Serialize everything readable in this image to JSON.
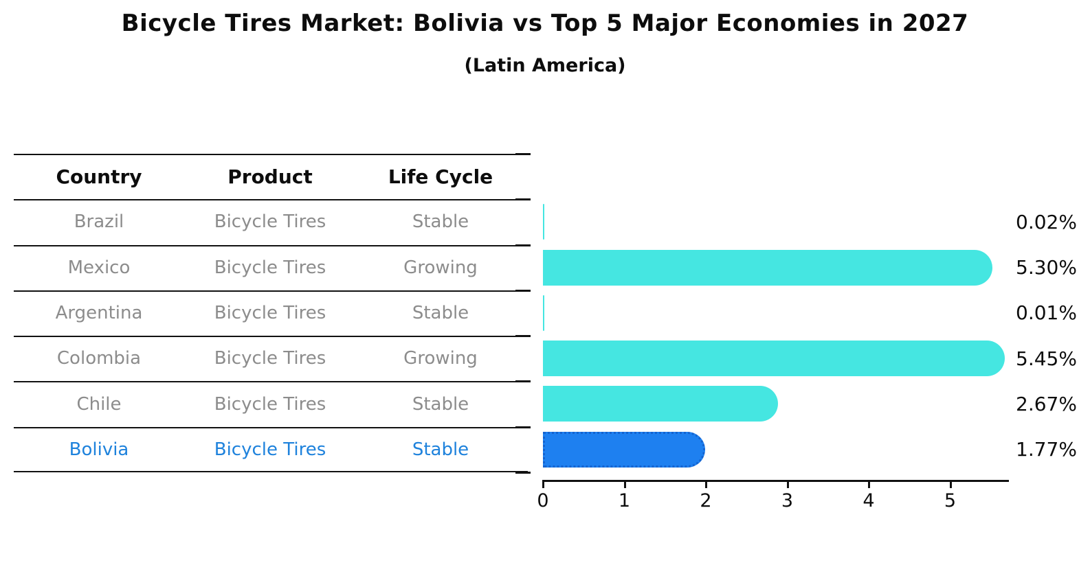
{
  "title": "Bicycle Tires Market: Bolivia vs Top 5 Major Economies in 2027",
  "subtitle": "(Latin America)",
  "table": {
    "headers": [
      "Country",
      "Product",
      "Life Cycle"
    ],
    "rows": [
      {
        "country": "Brazil",
        "product": "Bicycle Tires",
        "life_cycle": "Stable",
        "highlighted": false
      },
      {
        "country": "Mexico",
        "product": "Bicycle Tires",
        "life_cycle": "Growing",
        "highlighted": false
      },
      {
        "country": "Argentina",
        "product": "Bicycle Tires",
        "life_cycle": "Stable",
        "highlighted": false
      },
      {
        "country": "Colombia",
        "product": "Bicycle Tires",
        "life_cycle": "Growing",
        "highlighted": false
      },
      {
        "country": "Chile",
        "product": "Bicycle Tires",
        "life_cycle": "Stable",
        "highlighted": false
      },
      {
        "country": "Bolivia",
        "product": "Bicycle Tires",
        "life_cycle": "Stable",
        "highlighted": true
      }
    ]
  },
  "chart_data": {
    "type": "bar",
    "orientation": "horizontal",
    "title": "Bicycle Tires Market: Bolivia vs Top 5 Major Economies in 2027",
    "subtitle": "(Latin America)",
    "categories": [
      "Brazil",
      "Mexico",
      "Argentina",
      "Colombia",
      "Chile",
      "Bolivia"
    ],
    "values": [
      0.02,
      5.3,
      0.01,
      5.45,
      2.67,
      1.77
    ],
    "value_labels": [
      "0.02%",
      "5.30%",
      "0.01%",
      "5.45%",
      "2.67%",
      "1.77%"
    ],
    "x_ticks": [
      "0",
      "1",
      "2",
      "3",
      "4",
      "5"
    ],
    "xlim": [
      0,
      5.7
    ],
    "xlabel": "",
    "ylabel": "",
    "grid": false,
    "legend": false,
    "highlight_category": "Bolivia",
    "bar_color": "#45e6e1",
    "highlight_bar_color": "#1e80f0",
    "highlight_edge_color": "#1463cf",
    "row_text_color": "#8c8c8c",
    "highlight_text_color": "#1e82dc"
  }
}
